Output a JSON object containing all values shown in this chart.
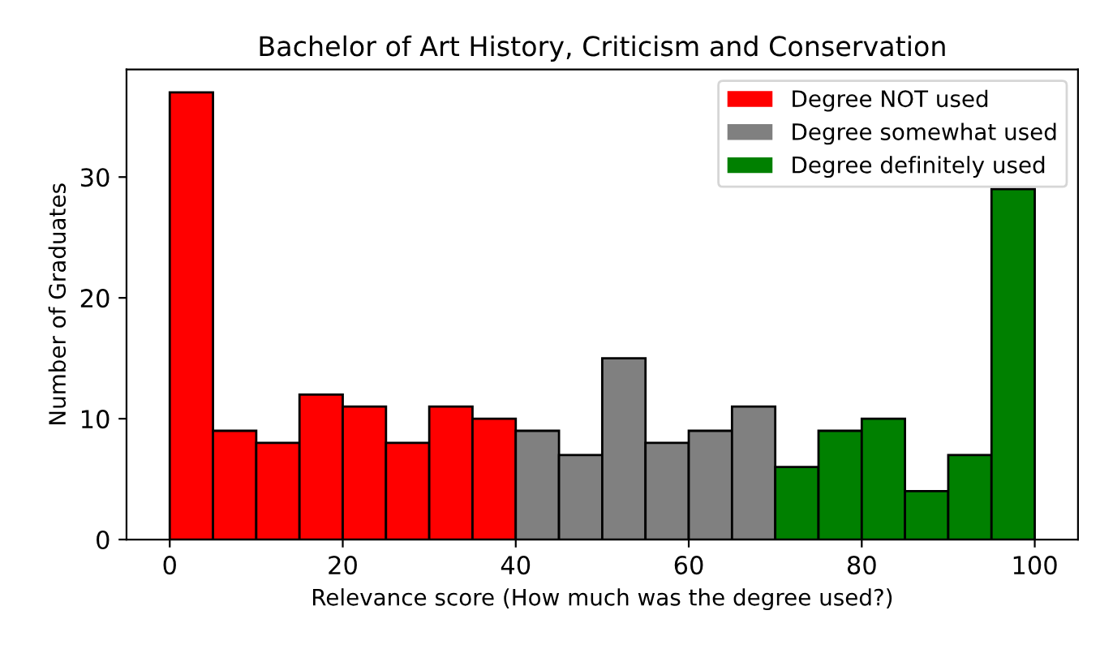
{
  "chart_data": {
    "type": "histogram",
    "title": "Bachelor of Art History, Criticism and Conservation",
    "xlabel": "Relevance score (How much was the degree used?)",
    "ylabel": "Number of Graduates",
    "bins": [
      0,
      5,
      10,
      15,
      20,
      25,
      30,
      35,
      40,
      45,
      50,
      55,
      60,
      65,
      70,
      75,
      80,
      85,
      90,
      95,
      100
    ],
    "series": [
      {
        "name": "Degree NOT used",
        "color": "#ff0000",
        "values": [
          37,
          9,
          8,
          12,
          11,
          8,
          11,
          10,
          null,
          null,
          null,
          null,
          null,
          null,
          null,
          null,
          null,
          null,
          null,
          null
        ]
      },
      {
        "name": "Degree somewhat used",
        "color": "#808080",
        "values": [
          null,
          null,
          null,
          null,
          null,
          null,
          null,
          null,
          9,
          7,
          15,
          8,
          9,
          11,
          null,
          null,
          null,
          null,
          null,
          null
        ]
      },
      {
        "name": "Degree definitely used",
        "color": "#008000",
        "values": [
          null,
          null,
          null,
          null,
          null,
          null,
          null,
          null,
          null,
          null,
          null,
          null,
          null,
          null,
          6,
          9,
          10,
          4,
          7,
          29
        ]
      }
    ],
    "xlim": [
      -5,
      105
    ],
    "ylim": [
      0,
      38.9
    ],
    "xticks": [
      0,
      20,
      40,
      60,
      80,
      100
    ],
    "yticks": [
      0,
      10,
      20,
      30
    ],
    "legend": "top right",
    "grid": false
  }
}
